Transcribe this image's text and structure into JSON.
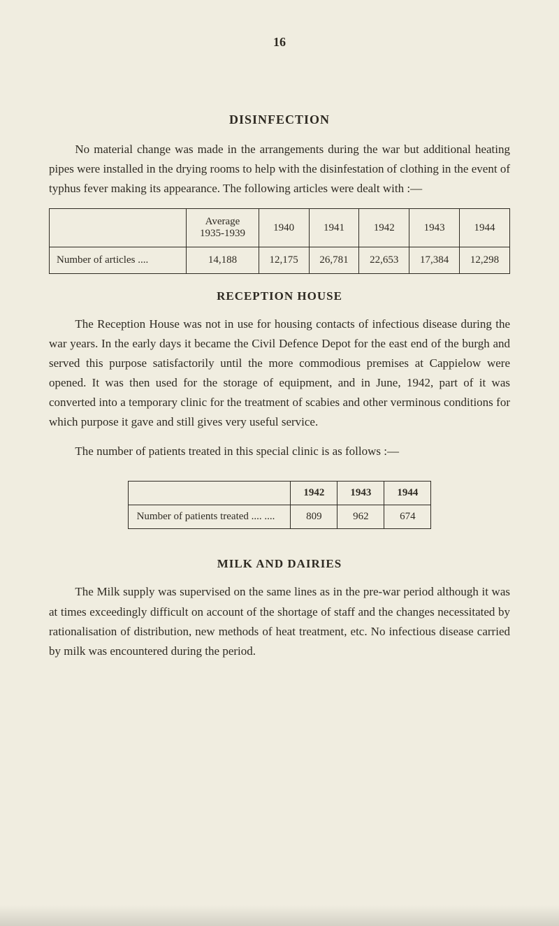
{
  "page_number": "16",
  "colors": {
    "background": "#f0ede0",
    "text": "#2e2a22",
    "border": "#2e2a22"
  },
  "typography": {
    "body_font_family": "Times New Roman",
    "body_fontsize_pt": 12,
    "heading_fontsize_pt": 13,
    "line_height": 1.65
  },
  "sections": {
    "disinfection": {
      "heading": "DISINFECTION",
      "paragraph": "No material change was made in the arrangements during the war but additional heating pipes were installed in the drying rooms to help with the disinfestation of clothing in the event of typhus fever making its appearance. The following articles were dealt with :—"
    },
    "reception": {
      "heading": "RECEPTION HOUSE",
      "paragraph1": "The Reception House was not in use for housing contacts of infectious disease during the war years. In the early days it became the Civil Defence Depot for the east end of the burgh and served this purpose satisfactorily until the more commodious premises at Cappielow were opened. It was then used for the storage of equipment, and in June, 1942, part of it was converted into a temporary clinic for the treatment of scabies and other verminous conditions for which purpose it gave and still gives very useful service.",
      "paragraph2": "The number of patients treated in this special clinic is as follows :—"
    },
    "milk": {
      "heading": "MILK AND DAIRIES",
      "paragraph": "The Milk supply was supervised on the same lines as in the pre-war period although it was at times exceedingly difficult on account of the shortage of staff and the changes necessitated by rationalisation of distribution, new methods of heat treatment, etc. No infectious disease carried by milk was encountered during the period."
    }
  },
  "articles_table": {
    "type": "table",
    "columns": [
      "",
      "Average 1935-1939",
      "1940",
      "1941",
      "1942",
      "1943",
      "1944"
    ],
    "row_label": "Number of articles     ....",
    "values": [
      "14,188",
      "12,175",
      "26,781",
      "22,653",
      "17,384",
      "12,298"
    ],
    "border_color": "#2e2a22",
    "cell_fontsize_pt": 11
  },
  "patients_table": {
    "type": "table",
    "columns": [
      "",
      "1942",
      "1943",
      "1944"
    ],
    "row_label": "Number of patients treated    ....    ....",
    "values": [
      "809",
      "962",
      "674"
    ],
    "border_color": "#2e2a22",
    "cell_fontsize_pt": 11
  }
}
